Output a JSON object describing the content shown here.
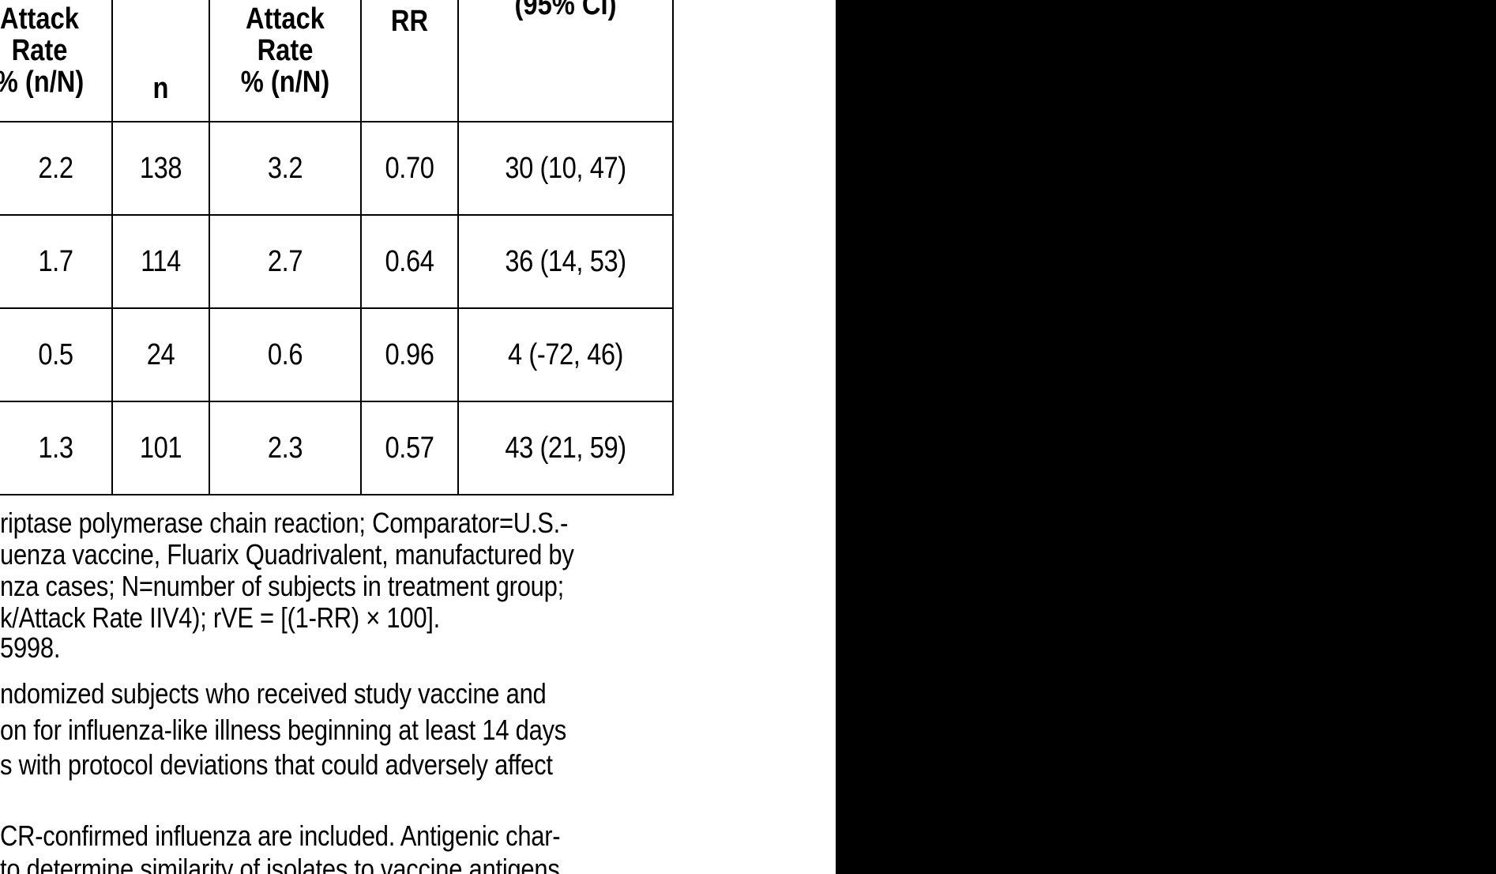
{
  "table": {
    "headers": {
      "attack_rate_left": [
        "Attack",
        "Rate",
        "% (n/N)"
      ],
      "n": "n",
      "attack_rate_right": [
        "Attack",
        "Rate",
        "% (n/N)"
      ],
      "rr": "RR",
      "rve_ci": "(95% CI)"
    },
    "rows": [
      {
        "attack_left": "2.2",
        "n": "138",
        "attack_right": "3.2",
        "rr": "0.70",
        "ci": "30 (10, 47)"
      },
      {
        "attack_left": "1.7",
        "n": "114",
        "attack_right": "2.7",
        "rr": "0.64",
        "ci": "36 (14, 53)"
      },
      {
        "attack_left": "0.5",
        "n": "24",
        "attack_right": "0.6",
        "rr": "0.96",
        "ci": "4 (-72, 46)"
      },
      {
        "attack_left": "1.3",
        "n": "101",
        "attack_right": "2.3",
        "rr": "0.57",
        "ci": "43 (21, 59)"
      }
    ]
  },
  "footnotes": [
    "riptase polymerase chain reaction; Comparator=U.S.-",
    "uenza vaccine, Fluarix Quadrivalent, manufactured by",
    "nza cases; N=number of subjects in treatment group;",
    "k/Attack Rate IIV4); rVE = [(1-RR) × 100].",
    "5998.",
    "ndomized subjects who received study vaccine and",
    "on for influenza-like illness beginning at least 14 days",
    "s with protocol deviations that could adversely affect",
    "",
    "CR-confirmed influenza are included. Antigenic char-",
    "to determine similarity of isolates to vaccine antigens"
  ]
}
